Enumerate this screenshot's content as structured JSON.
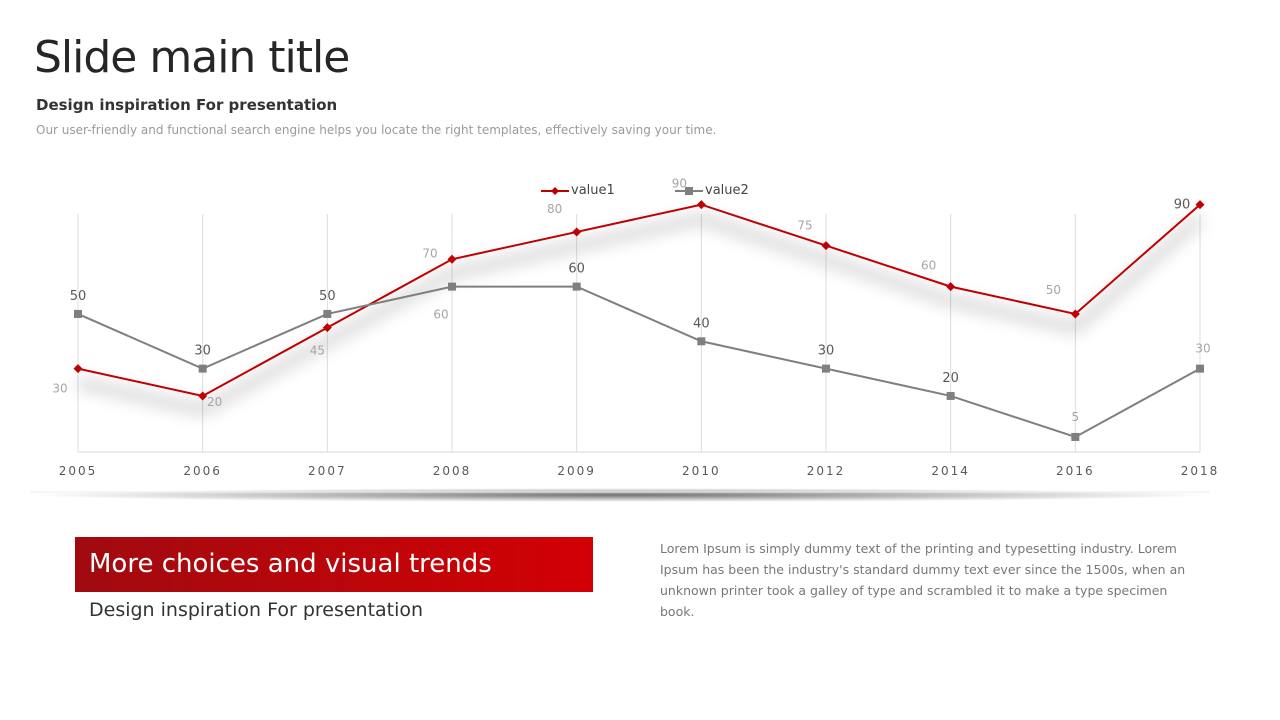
{
  "slide": {
    "title": "Slide main title",
    "subtitle": "Design inspiration For presentation",
    "description": "Our user-friendly and functional search engine helps you locate the right templates, effectively saving your time."
  },
  "chart_data": {
    "type": "line",
    "title": "",
    "xlabel": "",
    "ylabel": "",
    "categories": [
      "2005",
      "2006",
      "2007",
      "2008",
      "2009",
      "2010",
      "2012",
      "2014",
      "2016",
      "2018"
    ],
    "series": [
      {
        "name": "value1",
        "values": [
          30,
          20,
          45,
          70,
          80,
          90,
          75,
          60,
          50,
          90
        ],
        "labels": [
          "30",
          "20",
          "45",
          "70",
          "80",
          "90",
          "75",
          "60",
          "50",
          "90"
        ],
        "color": "#c00000",
        "marker": "diamond"
      },
      {
        "name": "value2",
        "values": [
          50,
          30,
          50,
          60,
          60,
          40,
          30,
          20,
          5,
          30
        ],
        "labels": [
          "50",
          "30",
          "50",
          "60",
          "60",
          "40",
          "30",
          "20",
          "5",
          "30"
        ],
        "color": "#7f7f7f",
        "marker": "square"
      }
    ],
    "ylim": [
      -0.5,
      99
    ],
    "grid": "vertical",
    "legend": "top-center"
  },
  "bottom": {
    "banner": "More choices and visual trends",
    "banner_sub": "Design inspiration For presentation",
    "body": "Lorem Ipsum is simply dummy text of the printing and typesetting industry. Lorem Ipsum has been the industry's standard dummy text ever since the 1500s, when an unknown printer took a galley of type and scrambled it to make a type specimen book."
  },
  "colors": {
    "accent_red": "#c00000",
    "accent_gray": "#7f7f7f"
  }
}
